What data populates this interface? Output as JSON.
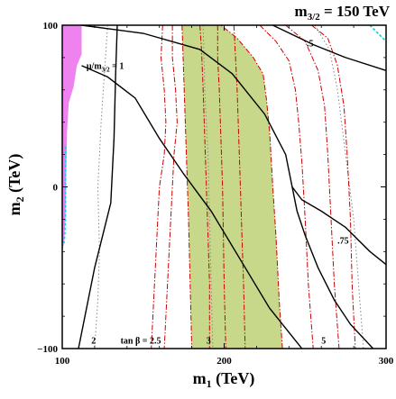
{
  "chart_data": {
    "type": "line",
    "title": "m3/2 = 150 TeV",
    "title_parts": {
      "base": "m",
      "sub": "3/2",
      "rest": " = 150 TeV"
    },
    "xlabel": {
      "base": "m",
      "sub": "1",
      "rest": " (TeV)"
    },
    "ylabel": {
      "base": "m",
      "sub": "2",
      "rest": " (TeV)"
    },
    "xlim": [
      100,
      300
    ],
    "ylim": [
      -100,
      100
    ],
    "x_ticks": [
      100,
      200,
      300
    ],
    "y_ticks": [
      -100,
      0,
      100
    ],
    "x_tick_labels": [
      "100",
      "200",
      "300"
    ],
    "y_tick_labels": [
      "−100",
      "0",
      "100"
    ],
    "colors": {
      "excluded_region": "#ee82ee",
      "allowed_band": "#c8d88a",
      "tanbeta_contours": "#cc0000",
      "mu_contours": "#000000",
      "dotted_contours": "#888888",
      "cyan_edge": "#00dddd"
    },
    "regions": [
      {
        "name": "excluded",
        "color": "#ee82ee",
        "points": [
          [
            100,
            100
          ],
          [
            112,
            100
          ],
          [
            112,
            82
          ],
          [
            109,
            75
          ],
          [
            107,
            62
          ],
          [
            104,
            52
          ],
          [
            103,
            35
          ],
          [
            102.5,
            10
          ],
          [
            102,
            -20
          ],
          [
            101,
            -35
          ],
          [
            100,
            -40
          ]
        ]
      },
      {
        "name": "band",
        "color": "#c8d88a",
        "points": [
          [
            174,
            100
          ],
          [
            198,
            100
          ],
          [
            208,
            92
          ],
          [
            218,
            80
          ],
          [
            224,
            70
          ],
          [
            226,
            55
          ],
          [
            228,
            35
          ],
          [
            230,
            0
          ],
          [
            232,
            -30
          ],
          [
            234,
            -70
          ],
          [
            236,
            -100
          ],
          [
            180,
            -100
          ],
          [
            179,
            -60
          ],
          [
            178,
            -20
          ],
          [
            177,
            10
          ],
          [
            176,
            40
          ],
          [
            175,
            70
          ]
        ]
      }
    ],
    "dashed_contours": [
      {
        "points": [
          [
            162,
            100
          ],
          [
            161,
            80
          ],
          [
            163,
            60
          ],
          [
            164,
            40
          ],
          [
            163,
            20
          ],
          [
            160,
            0
          ],
          [
            159,
            -20
          ],
          [
            158,
            -40
          ],
          [
            157,
            -60
          ],
          [
            156,
            -80
          ],
          [
            155,
            -100
          ]
        ]
      },
      {
        "points": [
          [
            168,
            100
          ],
          [
            168,
            80
          ],
          [
            170,
            60
          ],
          [
            171,
            40
          ],
          [
            169,
            20
          ],
          [
            168,
            0
          ],
          [
            167,
            -20
          ],
          [
            166,
            -40
          ],
          [
            165,
            -60
          ],
          [
            164,
            -80
          ],
          [
            163,
            -100
          ]
        ]
      },
      {
        "points": [
          [
            174,
            100
          ],
          [
            175,
            70
          ],
          [
            176,
            40
          ],
          [
            177,
            10
          ],
          [
            178,
            -20
          ],
          [
            179,
            -60
          ],
          [
            180,
            -100
          ]
        ]
      },
      {
        "points": [
          [
            185,
            100
          ],
          [
            186,
            85
          ],
          [
            187,
            60
          ],
          [
            188,
            30
          ],
          [
            189,
            0
          ],
          [
            190,
            -30
          ],
          [
            191,
            -60
          ],
          [
            191,
            -100
          ]
        ]
      },
      {
        "points": [
          [
            196,
            100
          ],
          [
            196,
            80
          ],
          [
            197,
            60
          ],
          [
            198,
            30
          ],
          [
            199,
            0
          ],
          [
            199.5,
            -30
          ],
          [
            200,
            -60
          ],
          [
            201,
            -100
          ]
        ]
      },
      {
        "points": [
          [
            206,
            100
          ],
          [
            207,
            80
          ],
          [
            208,
            60
          ],
          [
            209,
            30
          ],
          [
            210,
            0
          ],
          [
            211,
            -30
          ],
          [
            212,
            -60
          ],
          [
            213,
            -100
          ]
        ]
      },
      {
        "points": [
          [
            236,
            -100
          ],
          [
            234,
            -70
          ],
          [
            232,
            -30
          ],
          [
            230,
            0
          ],
          [
            228,
            35
          ],
          [
            226,
            55
          ],
          [
            224,
            70
          ],
          [
            218,
            80
          ],
          [
            208,
            92
          ],
          [
            198,
            100
          ]
        ]
      },
      {
        "points": [
          [
            222,
            100
          ],
          [
            232,
            90
          ],
          [
            240,
            78
          ],
          [
            244,
            60
          ],
          [
            246,
            40
          ],
          [
            248,
            15
          ],
          [
            250,
            -20
          ],
          [
            252,
            -60
          ],
          [
            255,
            -100
          ]
        ]
      },
      {
        "points": [
          [
            238,
            100
          ],
          [
            250,
            90
          ],
          [
            258,
            72
          ],
          [
            262,
            50
          ],
          [
            264,
            20
          ],
          [
            266,
            -20
          ],
          [
            268,
            -60
          ],
          [
            271,
            -100
          ]
        ]
      },
      {
        "points": [
          [
            254,
            100
          ],
          [
            264,
            92
          ],
          [
            270,
            75
          ],
          [
            274,
            50
          ],
          [
            276,
            20
          ],
          [
            278,
            -20
          ],
          [
            279,
            -60
          ],
          [
            281,
            -100
          ]
        ]
      }
    ],
    "solid_contours": [
      {
        "label": "μ/m3/2 = 1",
        "points": [
          [
            112,
            75
          ],
          [
            128,
            68
          ],
          [
            145,
            55
          ],
          [
            160,
            30
          ],
          [
            175,
            8
          ],
          [
            192,
            -15
          ],
          [
            210,
            -45
          ],
          [
            228,
            -75
          ],
          [
            248,
            -100
          ]
        ]
      },
      {
        "label": "",
        "points": [
          [
            112,
            100
          ],
          [
            150,
            95
          ],
          [
            185,
            85
          ],
          [
            205,
            70
          ],
          [
            225,
            45
          ],
          [
            238,
            20
          ],
          [
            242,
            0
          ],
          [
            245,
            -15
          ],
          [
            250,
            -30
          ],
          [
            258,
            -50
          ],
          [
            268,
            -70
          ],
          [
            278,
            -85
          ],
          [
            292,
            -100
          ]
        ]
      },
      {
        "label": ".75",
        "points": [
          [
            242,
            0
          ],
          [
            248,
            -8
          ],
          [
            260,
            -15
          ],
          [
            275,
            -25
          ],
          [
            290,
            -40
          ],
          [
            300,
            -48
          ]
        ]
      },
      {
        "label": ".5",
        "points": [
          [
            230,
            100
          ],
          [
            255,
            88
          ],
          [
            275,
            80
          ],
          [
            300,
            72
          ]
        ]
      },
      {
        "label": "",
        "points": [
          [
            110,
            -100
          ],
          [
            120,
            -50
          ],
          [
            130,
            -10
          ],
          [
            132,
            30
          ],
          [
            133,
            70
          ],
          [
            134,
            100
          ]
        ]
      }
    ],
    "dotted_contours": [
      {
        "points": [
          [
            128,
            100
          ],
          [
            126,
            70
          ],
          [
            124,
            40
          ],
          [
            122,
            0
          ],
          [
            123,
            -40
          ],
          [
            122,
            -70
          ],
          [
            120,
            -100
          ]
        ]
      },
      {
        "points": [
          [
            187,
            100
          ],
          [
            188,
            60
          ],
          [
            190,
            20
          ],
          [
            191,
            -20
          ],
          [
            192,
            -60
          ],
          [
            193,
            -100
          ]
        ]
      },
      {
        "points": [
          [
            256,
            100
          ],
          [
            265,
            85
          ],
          [
            270,
            60
          ],
          [
            275,
            20
          ],
          [
            280,
            -20
          ],
          [
            283,
            -60
          ],
          [
            286,
            -100
          ]
        ]
      }
    ],
    "cyan_edges": [
      {
        "points": [
          [
            102,
            25
          ],
          [
            102,
            0
          ],
          [
            102,
            -15
          ],
          [
            101.5,
            -30
          ],
          [
            101,
            -35
          ]
        ]
      },
      {
        "points": [
          [
            290,
            100
          ],
          [
            296,
            94
          ],
          [
            300,
            90
          ]
        ]
      }
    ],
    "annotations": [
      {
        "text": "μ/m3/2 = 1",
        "base": "μ/m",
        "sub": "3/2",
        "rest": " = 1",
        "x": 115,
        "y": 73
      },
      {
        "text": ".5",
        "x": 251,
        "y": 87
      },
      {
        "text": ".75",
        "x": 270,
        "y": -35
      },
      {
        "text": "2",
        "x": 118,
        "y": -97
      },
      {
        "text": "tan β = 2.5",
        "x": 136,
        "y": -97
      },
      {
        "text": "3",
        "x": 189,
        "y": -97
      },
      {
        "text": "5",
        "x": 260,
        "y": -97
      }
    ]
  }
}
